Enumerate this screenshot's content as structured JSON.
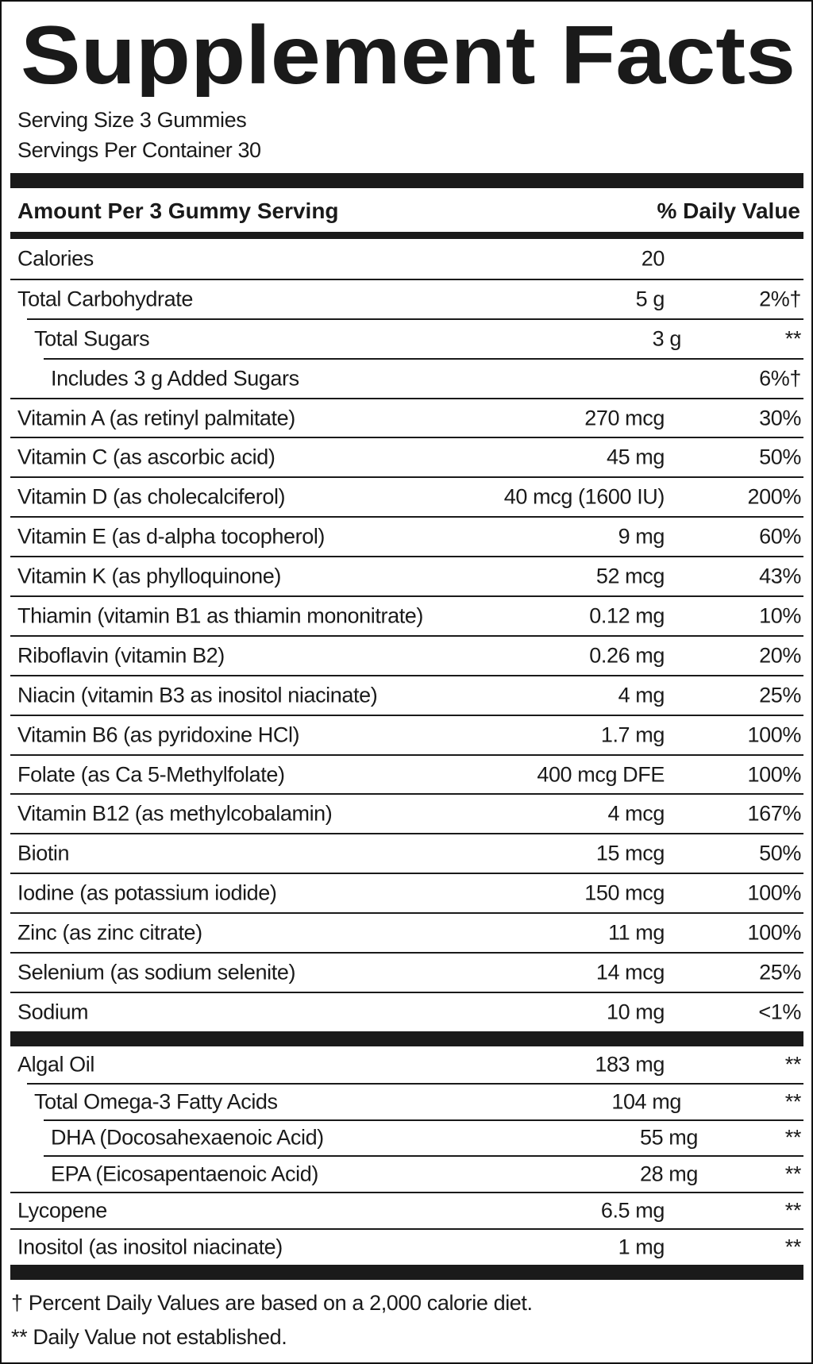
{
  "title": "Supplement Facts",
  "serving_size": "Serving Size 3 Gummies",
  "servings_per_container": "Servings Per Container 30",
  "header": {
    "amount": "Amount Per 3 Gummy Serving",
    "daily_value": "% Daily Value"
  },
  "nutrients": [
    {
      "name": "Calories",
      "amount": "20"
    },
    {
      "name": "Total Carbohydrate",
      "amount": "5 g",
      "dv": "2%†"
    },
    {
      "name": "Total Sugars",
      "amount": "3 g",
      "dv": "**"
    },
    {
      "name": "Includes 3 g Added Sugars",
      "dv": "6%†"
    },
    {
      "name": "Vitamin A (as retinyl palmitate)",
      "amount": "270 mcg",
      "dv": "30%"
    },
    {
      "name": "Vitamin C (as ascorbic acid)",
      "amount": "45 mg",
      "dv": "50%"
    },
    {
      "name": "Vitamin D (as cholecalciferol)",
      "amount": "40 mcg (1600 IU)",
      "dv": "200%"
    },
    {
      "name": "Vitamin E (as d-alpha tocopherol)",
      "amount": "9 mg",
      "dv": "60%"
    },
    {
      "name": "Vitamin K (as phylloquinone)",
      "amount": "52 mcg",
      "dv": "43%"
    },
    {
      "name": "Thiamin (vitamin B1 as thiamin mononitrate)",
      "amount": "0.12 mg",
      "dv": "10%"
    },
    {
      "name": "Riboflavin (vitamin B2)",
      "amount": "0.26 mg",
      "dv": "20%"
    },
    {
      "name": "Niacin (vitamin B3 as inositol niacinate)",
      "amount": "4 mg",
      "dv": "25%"
    },
    {
      "name": "Vitamin B6 (as pyridoxine HCl)",
      "amount": "1.7 mg",
      "dv": "100%"
    },
    {
      "name": "Folate (as Ca 5-Methylfolate)",
      "amount": "400 mcg DFE",
      "dv": "100%"
    },
    {
      "name": "Vitamin B12 (as methylcobalamin)",
      "amount": "4 mcg",
      "dv": "167%"
    },
    {
      "name": "Biotin",
      "amount": "15 mcg",
      "dv": "50%"
    },
    {
      "name": "Iodine (as potassium iodide)",
      "amount": "150 mcg",
      "dv": "100%"
    },
    {
      "name": "Zinc (as zinc citrate)",
      "amount": "11 mg",
      "dv": "100%"
    },
    {
      "name": "Selenium (as sodium selenite)",
      "amount": "14 mcg",
      "dv": "25%"
    },
    {
      "name": "Sodium",
      "amount": "10 mg",
      "dv": "<1%"
    }
  ],
  "other_ingredients": [
    {
      "name": "Algal Oil",
      "amount": "183 mg",
      "dv": "**"
    },
    {
      "name": "Total Omega-3 Fatty Acids",
      "amount": "104 mg",
      "dv": "**"
    },
    {
      "name": "DHA (Docosahexaenoic Acid)",
      "amount": "55 mg",
      "dv": "**"
    },
    {
      "name": "EPA (Eicosapentaenoic Acid)",
      "amount": "28 mg",
      "dv": "**"
    },
    {
      "name": "Lycopene",
      "amount": "6.5 mg",
      "dv": "**"
    },
    {
      "name": "Inositol (as inositol niacinate)",
      "amount": "1 mg",
      "dv": "**"
    }
  ],
  "footnotes": [
    "† Percent Daily Values are based on a 2,000 calorie diet.",
    "** Daily Value not established."
  ]
}
